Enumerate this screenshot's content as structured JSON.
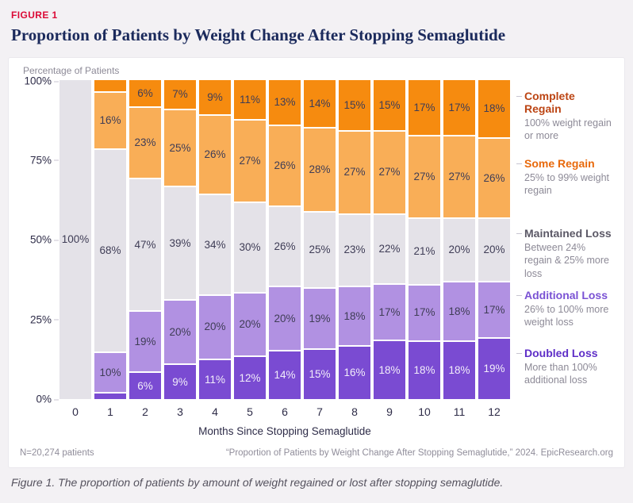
{
  "figure_label": "FIGURE 1",
  "title": "Proportion of Patients by Weight Change After Stopping Semaglutide",
  "chart": {
    "y_axis_title": "Percentage of Patients",
    "y_ticks": [
      "100%",
      "75%",
      "50%",
      "25%",
      "0%"
    ],
    "x_axis_title": "Months Since Stopping Semaglutide"
  },
  "chart_data": {
    "type": "bar",
    "stacked": true,
    "title": "Proportion of Patients by Weight Change After Stopping Semaglutide",
    "xlabel": "Months Since Stopping Semaglutide",
    "ylabel": "Percentage of Patients",
    "ylim": [
      0,
      100
    ],
    "grid": false,
    "legend_position": "right",
    "categories": [
      "0",
      "1",
      "2",
      "3",
      "4",
      "5",
      "6",
      "7",
      "8",
      "9",
      "10",
      "11",
      "12"
    ],
    "series": [
      {
        "name": "Doubled Loss",
        "color": "#7A4BD2",
        "label_color": "#F2EDFA",
        "values": [
          0,
          2,
          6,
          9,
          11,
          12,
          14,
          15,
          16,
          18,
          18,
          18,
          19
        ],
        "labels": [
          "",
          "",
          "6%",
          "9%",
          "11%",
          "12%",
          "14%",
          "15%",
          "16%",
          "18%",
          "18%",
          "18%",
          "19%"
        ]
      },
      {
        "name": "Additional Loss",
        "color": "#B191E2",
        "label_color": "#3F3D56",
        "values": [
          0,
          10,
          19,
          20,
          20,
          20,
          20,
          19,
          18,
          17,
          17,
          18,
          17
        ],
        "labels": [
          "",
          "10%",
          "19%",
          "20%",
          "20%",
          "20%",
          "20%",
          "19%",
          "18%",
          "17%",
          "17%",
          "18%",
          "17%"
        ]
      },
      {
        "name": "Maintained Loss",
        "color": "#E4E2E8",
        "label_color": "#3F3D56",
        "values": [
          100,
          68,
          47,
          39,
          34,
          30,
          26,
          25,
          23,
          22,
          21,
          20,
          20
        ],
        "labels": [
          "100%",
          "68%",
          "47%",
          "39%",
          "34%",
          "30%",
          "26%",
          "25%",
          "23%",
          "22%",
          "21%",
          "20%",
          "20%"
        ]
      },
      {
        "name": "Some Regain",
        "color": "#F9AE57",
        "label_color": "#3F3D56",
        "values": [
          0,
          16,
          23,
          25,
          26,
          27,
          26,
          28,
          27,
          27,
          27,
          27,
          26
        ],
        "labels": [
          "",
          "16%",
          "23%",
          "25%",
          "26%",
          "27%",
          "26%",
          "28%",
          "27%",
          "27%",
          "27%",
          "27%",
          "26%"
        ]
      },
      {
        "name": "Complete Regain",
        "color": "#F68B0F",
        "label_color": "#3F3D56",
        "values": [
          0,
          4,
          6,
          7,
          9,
          11,
          13,
          14,
          15,
          15,
          17,
          17,
          18
        ],
        "labels": [
          "",
          "",
          "6%",
          "7%",
          "9%",
          "11%",
          "13%",
          "14%",
          "15%",
          "15%",
          "17%",
          "17%",
          "18%"
        ]
      }
    ]
  },
  "legend": [
    {
      "title": "Complete Regain",
      "color": "#BC4514",
      "desc": "100% weight regain or more"
    },
    {
      "title": "Some Regain",
      "color": "#E8690B",
      "desc": "25% to 99% weight regain"
    },
    {
      "title": "Maintained Loss",
      "color": "#5B5866",
      "desc": "Between 24% regain & 25% more loss"
    },
    {
      "title": "Additional Loss",
      "color": "#7A52D4",
      "desc": "26% to 100% more weight loss"
    },
    {
      "title": "Doubled Loss",
      "color": "#5E2EC7",
      "desc": "More than 100% additional loss"
    }
  ],
  "footer": {
    "n_label": "N=20,274 patients",
    "source": "“Proportion of Patients by Weight Change After Stopping Semaglutide,” 2024. EpicResearch.org"
  },
  "caption": "Figure 1. The proportion of patients by amount of weight regained or lost after stopping semaglutide."
}
